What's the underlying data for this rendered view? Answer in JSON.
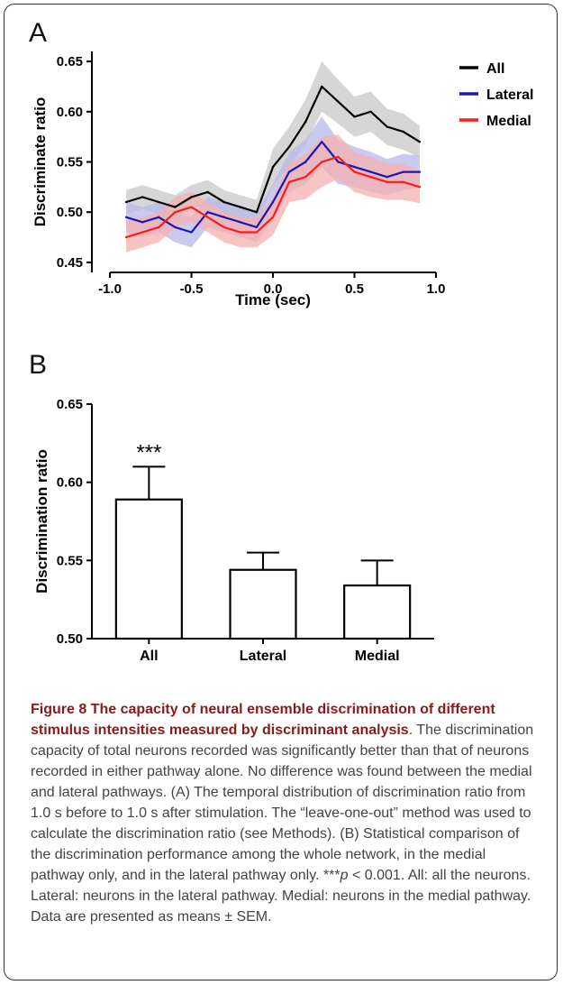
{
  "panel_a_letter": "A",
  "panel_b_letter": "B",
  "chart_data": [
    {
      "type": "line",
      "title": "",
      "xlabel": "Time (sec)",
      "ylabel": "Discriminate ratio",
      "xlim": [
        -1.0,
        1.0
      ],
      "ylim": [
        0.44,
        0.66
      ],
      "x_ticks": [
        "-1.0",
        "-0.5",
        "0.0",
        "0.5",
        "1.0"
      ],
      "y_ticks": [
        "0.45",
        "0.50",
        "0.55",
        "0.60",
        "0.65"
      ],
      "legend_position": "top-right",
      "x": [
        -0.9,
        -0.8,
        -0.7,
        -0.6,
        -0.5,
        -0.4,
        -0.3,
        -0.2,
        -0.1,
        0.0,
        0.1,
        0.2,
        0.3,
        0.4,
        0.5,
        0.6,
        0.7,
        0.8,
        0.9
      ],
      "series": [
        {
          "name": "All",
          "color": "#000000",
          "band_color": "#c8c8c8",
          "values": [
            0.51,
            0.515,
            0.51,
            0.505,
            0.515,
            0.52,
            0.51,
            0.505,
            0.5,
            0.545,
            0.565,
            0.59,
            0.625,
            0.61,
            0.595,
            0.6,
            0.585,
            0.58,
            0.57
          ],
          "sem": [
            0.012,
            0.012,
            0.012,
            0.012,
            0.012,
            0.012,
            0.012,
            0.012,
            0.012,
            0.018,
            0.02,
            0.022,
            0.025,
            0.022,
            0.02,
            0.02,
            0.018,
            0.018,
            0.016
          ]
        },
        {
          "name": "Lateral",
          "color": "#1a1aa8",
          "band_color": "#b8b8e8",
          "values": [
            0.495,
            0.49,
            0.495,
            0.485,
            0.48,
            0.5,
            0.495,
            0.49,
            0.485,
            0.51,
            0.54,
            0.55,
            0.57,
            0.55,
            0.545,
            0.54,
            0.535,
            0.54,
            0.54
          ],
          "sem": [
            0.015,
            0.015,
            0.015,
            0.015,
            0.015,
            0.015,
            0.015,
            0.015,
            0.015,
            0.018,
            0.02,
            0.022,
            0.025,
            0.022,
            0.02,
            0.02,
            0.018,
            0.018,
            0.016
          ]
        },
        {
          "name": "Medial",
          "color": "#ff1a1a",
          "band_color": "#f4b0b0",
          "values": [
            0.475,
            0.48,
            0.485,
            0.5,
            0.505,
            0.495,
            0.485,
            0.48,
            0.48,
            0.495,
            0.53,
            0.535,
            0.55,
            0.555,
            0.54,
            0.535,
            0.53,
            0.53,
            0.525
          ],
          "sem": [
            0.015,
            0.015,
            0.015,
            0.015,
            0.015,
            0.015,
            0.015,
            0.015,
            0.015,
            0.018,
            0.02,
            0.022,
            0.025,
            0.022,
            0.02,
            0.02,
            0.018,
            0.018,
            0.016
          ]
        }
      ]
    },
    {
      "type": "bar",
      "title": "",
      "xlabel": "",
      "ylabel": "Discrimination ratio",
      "ylim": [
        0.5,
        0.65
      ],
      "y_ticks": [
        "0.50",
        "0.55",
        "0.60",
        "0.65"
      ],
      "categories": [
        "All",
        "Lateral",
        "Medial"
      ],
      "values": [
        0.589,
        0.544,
        0.534
      ],
      "errors": [
        0.021,
        0.011,
        0.016
      ],
      "annotations": [
        "***",
        "",
        ""
      ]
    }
  ],
  "caption": {
    "title": "Figure 8 The capacity of neural ensemble discrimination of different stimulus intensities measured by discriminant analysis",
    "body": ". The discrimination capacity of total neurons recorded was significantly better than that of neurons recorded in either pathway alone. No difference was found between the medial and lateral pathways. (A) The temporal distribution of discrimination ratio from 1.0 s before to 1.0 s after stimulation. The “leave-one-out” method was used to calculate the discrimination ratio (see Methods). (B) Statistical comparison of the discrimination performance among the whole network, in the medial pathway only, and in the lateral pathway only. ",
    "p_stars": "***",
    "p_letter": "p",
    "p_rest": " < 0.001. All: all the neurons. Lateral: neurons in the lateral pathway. Medial: neurons in the medial pathway. Data are presented as means ± SEM."
  }
}
